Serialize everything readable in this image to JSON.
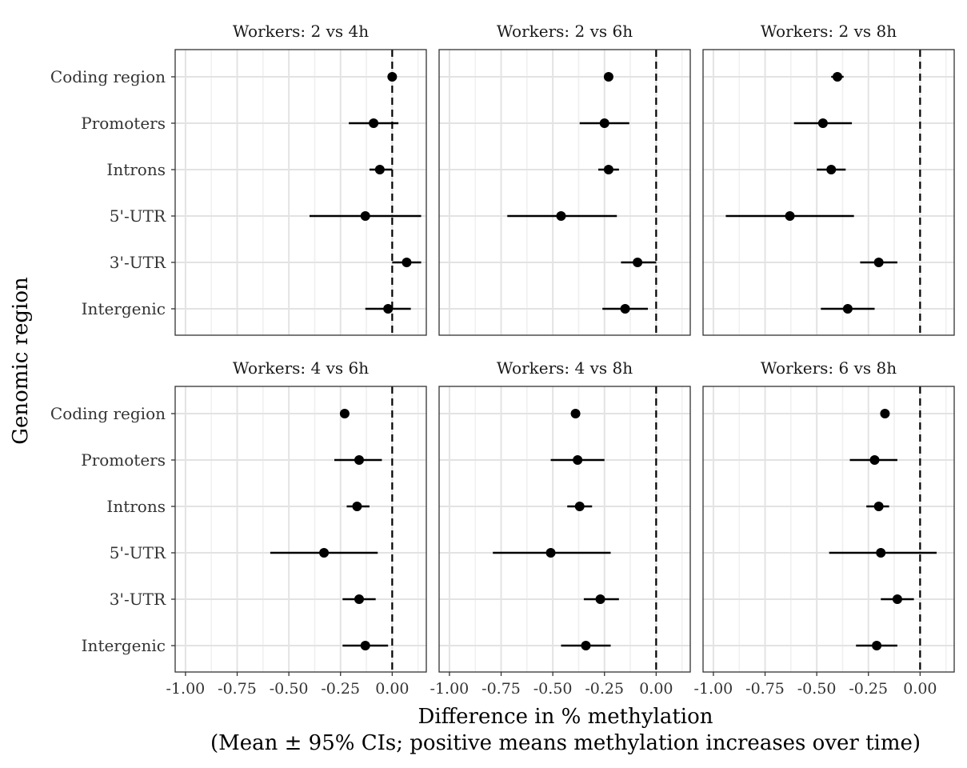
{
  "chart_data": {
    "type": "scatter",
    "style": "faceted point-range (mean with 95% CI error bars)",
    "xlabel": "Difference in % methylation",
    "xlabel_line2": "(Mean ± 95% CIs; positive means methylation increases over time)",
    "ylabel": "Genomic region",
    "categories": [
      "Coding region",
      "Promoters",
      "Introns",
      "5'-UTR",
      "3'-UTR",
      "Intergenic"
    ],
    "xlim": [
      -1.0,
      0.2
    ],
    "x_ticks": [
      -1.0,
      -0.75,
      -0.5,
      -0.25,
      0.0
    ],
    "x_tick_labels": [
      "-1.00",
      "-0.75",
      "-0.50",
      "-0.25",
      "0.00"
    ],
    "reference_line": 0,
    "grid": true,
    "panels": [
      {
        "title": "Workers: 2 vs 4h",
        "points": [
          {
            "category": "Coding region",
            "mean": 0.0,
            "lo": -0.01,
            "hi": 0.01
          },
          {
            "category": "Promoters",
            "mean": -0.09,
            "lo": -0.21,
            "hi": 0.03
          },
          {
            "category": "Introns",
            "mean": -0.06,
            "lo": -0.11,
            "hi": 0.0
          },
          {
            "category": "5'-UTR",
            "mean": -0.13,
            "lo": -0.4,
            "hi": 0.14
          },
          {
            "category": "3'-UTR",
            "mean": 0.07,
            "lo": 0.0,
            "hi": 0.14
          },
          {
            "category": "Intergenic",
            "mean": -0.02,
            "lo": -0.13,
            "hi": 0.09
          }
        ]
      },
      {
        "title": "Workers: 2 vs 6h",
        "points": [
          {
            "category": "Coding region",
            "mean": -0.23,
            "lo": -0.25,
            "hi": -0.21
          },
          {
            "category": "Promoters",
            "mean": -0.25,
            "lo": -0.37,
            "hi": -0.13
          },
          {
            "category": "Introns",
            "mean": -0.23,
            "lo": -0.28,
            "hi": -0.18
          },
          {
            "category": "5'-UTR",
            "mean": -0.46,
            "lo": -0.72,
            "hi": -0.19
          },
          {
            "category": "3'-UTR",
            "mean": -0.09,
            "lo": -0.17,
            "hi": 0.0
          },
          {
            "category": "Intergenic",
            "mean": -0.15,
            "lo": -0.26,
            "hi": -0.04
          }
        ]
      },
      {
        "title": "Workers: 2 vs 8h",
        "points": [
          {
            "category": "Coding region",
            "mean": -0.4,
            "lo": -0.43,
            "hi": -0.37
          },
          {
            "category": "Promoters",
            "mean": -0.47,
            "lo": -0.61,
            "hi": -0.33
          },
          {
            "category": "Introns",
            "mean": -0.43,
            "lo": -0.5,
            "hi": -0.36
          },
          {
            "category": "5'-UTR",
            "mean": -0.63,
            "lo": -0.94,
            "hi": -0.32
          },
          {
            "category": "3'-UTR",
            "mean": -0.2,
            "lo": -0.29,
            "hi": -0.11
          },
          {
            "category": "Intergenic",
            "mean": -0.35,
            "lo": -0.48,
            "hi": -0.22
          }
        ]
      },
      {
        "title": "Workers: 4 vs 6h",
        "points": [
          {
            "category": "Coding region",
            "mean": -0.23,
            "lo": -0.25,
            "hi": -0.21
          },
          {
            "category": "Promoters",
            "mean": -0.16,
            "lo": -0.28,
            "hi": -0.05
          },
          {
            "category": "Introns",
            "mean": -0.17,
            "lo": -0.22,
            "hi": -0.11
          },
          {
            "category": "5'-UTR",
            "mean": -0.33,
            "lo": -0.59,
            "hi": -0.07
          },
          {
            "category": "3'-UTR",
            "mean": -0.16,
            "lo": -0.24,
            "hi": -0.08
          },
          {
            "category": "Intergenic",
            "mean": -0.13,
            "lo": -0.24,
            "hi": -0.02
          }
        ]
      },
      {
        "title": "Workers: 4 vs 8h",
        "points": [
          {
            "category": "Coding region",
            "mean": -0.39,
            "lo": -0.41,
            "hi": -0.37
          },
          {
            "category": "Promoters",
            "mean": -0.38,
            "lo": -0.51,
            "hi": -0.25
          },
          {
            "category": "Introns",
            "mean": -0.37,
            "lo": -0.43,
            "hi": -0.31
          },
          {
            "category": "5'-UTR",
            "mean": -0.51,
            "lo": -0.79,
            "hi": -0.22
          },
          {
            "category": "3'-UTR",
            "mean": -0.27,
            "lo": -0.35,
            "hi": -0.18
          },
          {
            "category": "Intergenic",
            "mean": -0.34,
            "lo": -0.46,
            "hi": -0.22
          }
        ]
      },
      {
        "title": "Workers: 6 vs 8h",
        "points": [
          {
            "category": "Coding region",
            "mean": -0.17,
            "lo": -0.19,
            "hi": -0.15
          },
          {
            "category": "Promoters",
            "mean": -0.22,
            "lo": -0.34,
            "hi": -0.11
          },
          {
            "category": "Introns",
            "mean": -0.2,
            "lo": -0.26,
            "hi": -0.15
          },
          {
            "category": "5'-UTR",
            "mean": -0.19,
            "lo": -0.44,
            "hi": 0.08
          },
          {
            "category": "3'-UTR",
            "mean": -0.11,
            "lo": -0.19,
            "hi": -0.03
          },
          {
            "category": "Intergenic",
            "mean": -0.21,
            "lo": -0.31,
            "hi": -0.11
          }
        ]
      }
    ]
  }
}
